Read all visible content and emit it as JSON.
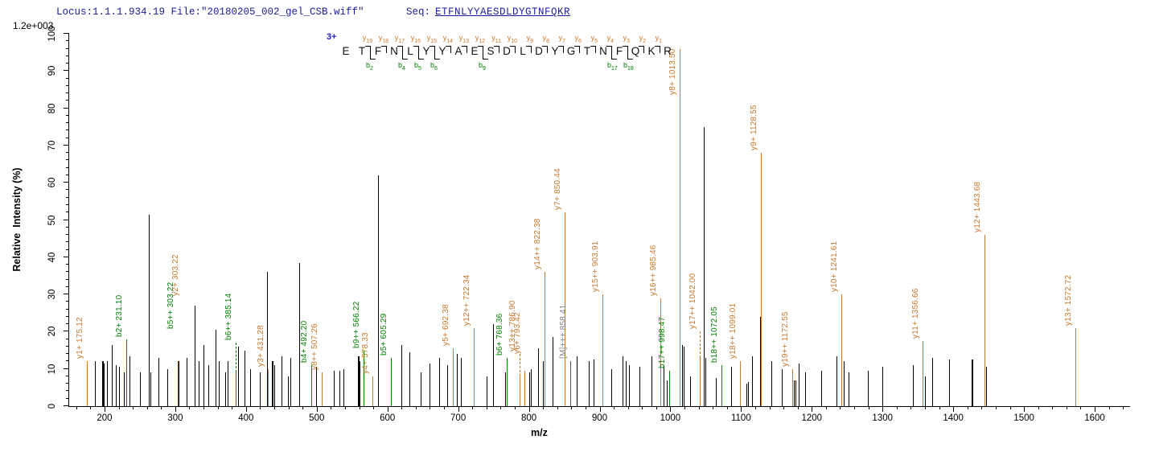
{
  "header": {
    "locus_file": "Locus:1.1.1.934.19 File:\"20180205_002_gel_CSB.wiff\"",
    "seq_label": "Seq:",
    "seq_value": "ETFNLYYAESDLDYGTNFQKR"
  },
  "colors": {
    "header_text": "#1c1c9e",
    "charge_text": "#2424cc",
    "y_ion": "#c8782d",
    "b_ion": "#008000",
    "unassigned_peak": "#000000",
    "precursor_label": "#808080",
    "precursor_line": "#555555"
  },
  "chart_data": {
    "type": "bar",
    "title": "",
    "xlabel": "m/z",
    "ylabel": "Relative  Intensity (%)",
    "y_axis_scale_label": "1.2e+003",
    "xlim": [
      150,
      1650
    ],
    "ylim": [
      0,
      100
    ],
    "x_major_ticks": [
      200,
      300,
      400,
      500,
      600,
      700,
      800,
      900,
      1000,
      1100,
      1200,
      1300,
      1400,
      1500,
      1600
    ],
    "x_minor_start": 160,
    "x_minor_end": 1640,
    "x_minor_step": 20,
    "y_major_step": 10,
    "y_minor_step": 2,
    "grid": false,
    "legend": false,
    "precursor_charge": "3+",
    "peptide": {
      "residues": "ETFNLYYAESDLDYGTNFQKR",
      "y_ions": [
        1,
        2,
        3,
        4,
        5,
        6,
        7,
        8,
        9,
        10,
        11,
        12,
        13,
        14,
        15,
        16,
        17,
        18,
        19
      ],
      "b_ions": [
        2,
        4,
        5,
        6,
        9,
        17,
        18
      ]
    },
    "peaks": [
      {
        "mz": 175.12,
        "i": 12,
        "t": "y",
        "label": "y1+ 175.12"
      },
      {
        "mz": 186,
        "i": 12,
        "t": "x"
      },
      {
        "mz": 197,
        "i": 12,
        "t": "x",
        "w": 2
      },
      {
        "mz": 199,
        "i": 11.5,
        "t": "x"
      },
      {
        "mz": 203,
        "i": 12,
        "t": "x"
      },
      {
        "mz": 210,
        "i": 16.5,
        "t": "x"
      },
      {
        "mz": 216,
        "i": 11,
        "t": "x"
      },
      {
        "mz": 221,
        "i": 10.5,
        "t": "x"
      },
      {
        "mz": 227,
        "i": 9,
        "t": "x"
      },
      {
        "mz": 231.1,
        "i": 18,
        "t": "b",
        "label": "b2+ 231.10"
      },
      {
        "mz": 235,
        "i": 13.5,
        "t": "x"
      },
      {
        "mz": 250,
        "i": 9,
        "t": "x"
      },
      {
        "mz": 263,
        "i": 51.5,
        "t": "x"
      },
      {
        "mz": 265,
        "i": 9,
        "t": "x"
      },
      {
        "mz": 276,
        "i": 13,
        "t": "x"
      },
      {
        "mz": 289,
        "i": 10,
        "t": "x"
      },
      {
        "mz": 303.22,
        "i": 12,
        "t": "b",
        "label": "b5++ 303.22",
        "dy": 8
      },
      {
        "mz": 303.22,
        "i": 12,
        "t": "y",
        "label": "y2+ 303.22",
        "dy": 17,
        "dx": 6,
        "nobar": true
      },
      {
        "mz": 305,
        "i": 12,
        "t": "x"
      },
      {
        "mz": 316,
        "i": 13,
        "t": "x"
      },
      {
        "mz": 327,
        "i": 27,
        "t": "x"
      },
      {
        "mz": 333,
        "i": 12,
        "t": "x"
      },
      {
        "mz": 340,
        "i": 16.5,
        "t": "x"
      },
      {
        "mz": 347,
        "i": 11,
        "t": "x"
      },
      {
        "mz": 357,
        "i": 20.5,
        "t": "x"
      },
      {
        "mz": 362,
        "i": 12,
        "t": "x"
      },
      {
        "mz": 371,
        "i": 9,
        "t": "x"
      },
      {
        "mz": 374,
        "i": 12,
        "t": "x"
      },
      {
        "mz": 385.14,
        "i": 9,
        "t": "b",
        "label": "b6++ 385.14",
        "leader": 8
      },
      {
        "mz": 389,
        "i": 16,
        "t": "x"
      },
      {
        "mz": 398,
        "i": 15,
        "t": "x"
      },
      {
        "mz": 406,
        "i": 10,
        "t": "x"
      },
      {
        "mz": 419,
        "i": 9,
        "t": "x"
      },
      {
        "mz": 430,
        "i": 36,
        "t": "x"
      },
      {
        "mz": 431.28,
        "i": 10,
        "t": "y",
        "label": "y3+ 431.28"
      },
      {
        "mz": 437,
        "i": 12,
        "t": "x",
        "w": 2
      },
      {
        "mz": 440,
        "i": 11,
        "t": "x"
      },
      {
        "mz": 450,
        "i": 13.5,
        "t": "x"
      },
      {
        "mz": 459,
        "i": 8,
        "t": "x"
      },
      {
        "mz": 463,
        "i": 13,
        "t": "x"
      },
      {
        "mz": 475,
        "i": 38.5,
        "t": "x"
      },
      {
        "mz": 492.2,
        "i": 11,
        "t": "b",
        "label": "b4+ 492.20"
      },
      {
        "mz": 499,
        "i": 10.5,
        "t": "x"
      },
      {
        "mz": 507.26,
        "i": 9,
        "t": "y",
        "label": "y8++ 507.26"
      },
      {
        "mz": 524,
        "i": 9.5,
        "t": "x"
      },
      {
        "mz": 532,
        "i": 9.5,
        "t": "x"
      },
      {
        "mz": 538,
        "i": 10,
        "t": "x"
      },
      {
        "mz": 558,
        "i": 13.5,
        "t": "x",
        "w": 2
      },
      {
        "mz": 561,
        "i": 12,
        "t": "x"
      },
      {
        "mz": 566.22,
        "i": 15,
        "t": "b",
        "label": "b9++ 566.22"
      },
      {
        "mz": 578.33,
        "i": 8,
        "t": "y",
        "label": "y4+ 578.33"
      },
      {
        "mz": 587,
        "i": 62,
        "t": "x"
      },
      {
        "mz": 605.29,
        "i": 13,
        "t": "b",
        "label": "b5+ 605.29"
      },
      {
        "mz": 620,
        "i": 16.5,
        "t": "x"
      },
      {
        "mz": 631,
        "i": 14.5,
        "t": "x"
      },
      {
        "mz": 647,
        "i": 9,
        "t": "x"
      },
      {
        "mz": 659,
        "i": 11.5,
        "t": "x"
      },
      {
        "mz": 673,
        "i": 13,
        "t": "x"
      },
      {
        "mz": 684,
        "i": 11,
        "t": "x"
      },
      {
        "mz": 692.38,
        "i": 15.5,
        "t": "y",
        "label": "y5+ 692.38"
      },
      {
        "mz": 698,
        "i": 14,
        "t": "x"
      },
      {
        "mz": 704,
        "i": 13,
        "t": "x"
      },
      {
        "mz": 722.34,
        "i": 21,
        "t": "y",
        "label": "y12++ 722.34"
      },
      {
        "mz": 740,
        "i": 8,
        "t": "x"
      },
      {
        "mz": 749,
        "i": 22,
        "t": "x"
      },
      {
        "mz": 766,
        "i": 9,
        "t": "x"
      },
      {
        "mz": 768.36,
        "i": 13,
        "t": "b",
        "label": "b6+ 768.36"
      },
      {
        "mz": 786.9,
        "i": 8,
        "t": "y",
        "label": "y13++ 786.90",
        "leader": 6
      },
      {
        "mz": 793.42,
        "i": 9.5,
        "t": "y",
        "label": "y6+ 793.42",
        "dy": 4
      },
      {
        "mz": 800,
        "i": 9,
        "t": "x"
      },
      {
        "mz": 803,
        "i": 10,
        "t": "x"
      },
      {
        "mz": 813,
        "i": 15.5,
        "t": "x"
      },
      {
        "mz": 820,
        "i": 12,
        "t": "x"
      },
      {
        "mz": 822.38,
        "i": 36,
        "t": "y",
        "label": "y14++ 822.38"
      },
      {
        "mz": 834,
        "i": 18.5,
        "t": "x"
      },
      {
        "mz": 850.44,
        "i": 52,
        "t": "y",
        "label": "y7+ 850.44"
      },
      {
        "mz": 858.41,
        "i": 12,
        "t": "M",
        "label": "[M]+++ 858.41"
      },
      {
        "mz": 868,
        "i": 13.5,
        "t": "x"
      },
      {
        "mz": 885,
        "i": 12,
        "t": "x"
      },
      {
        "mz": 891,
        "i": 12.5,
        "t": "x"
      },
      {
        "mz": 903.91,
        "i": 30,
        "t": "y",
        "label": "y15++ 903.91"
      },
      {
        "mz": 917,
        "i": 10,
        "t": "x"
      },
      {
        "mz": 932,
        "i": 13.5,
        "t": "x"
      },
      {
        "mz": 937,
        "i": 12,
        "t": "x"
      },
      {
        "mz": 941,
        "i": 11,
        "t": "x"
      },
      {
        "mz": 956,
        "i": 10.5,
        "t": "x"
      },
      {
        "mz": 973,
        "i": 13.5,
        "t": "x"
      },
      {
        "mz": 985.46,
        "i": 29,
        "t": "y",
        "label": "y16++ 985.46"
      },
      {
        "mz": 990,
        "i": 11,
        "t": "x"
      },
      {
        "mz": 995,
        "i": 7,
        "t": "x"
      },
      {
        "mz": 998.47,
        "i": 9.5,
        "t": "b",
        "label": "b17++ 998.47"
      },
      {
        "mz": 1013.5,
        "i": 96,
        "t": "y",
        "label": "y8+ 1013.50",
        "anchor": 83
      },
      {
        "mz": 1017,
        "i": 16.5,
        "t": "x"
      },
      {
        "mz": 1019,
        "i": 16,
        "t": "x"
      },
      {
        "mz": 1028,
        "i": 8,
        "t": "x"
      },
      {
        "mz": 1042.0,
        "i": 13,
        "t": "y",
        "label": "y17++ 1042.00",
        "leader": 7
      },
      {
        "mz": 1047,
        "i": 75,
        "t": "x"
      },
      {
        "mz": 1050,
        "i": 13,
        "t": "x"
      },
      {
        "mz": 1064,
        "i": 7.5,
        "t": "x"
      },
      {
        "mz": 1072.05,
        "i": 11,
        "t": "b",
        "label": "b18++ 1072.05"
      },
      {
        "mz": 1086,
        "i": 10.5,
        "t": "x"
      },
      {
        "mz": 1099.01,
        "i": 12,
        "t": "y",
        "label": "y18++ 1099.01"
      },
      {
        "mz": 1107,
        "i": 6,
        "t": "x"
      },
      {
        "mz": 1110,
        "i": 6.5,
        "t": "x"
      },
      {
        "mz": 1116,
        "i": 13.5,
        "t": "x"
      },
      {
        "mz": 1127,
        "i": 24,
        "t": "x"
      },
      {
        "mz": 1128.55,
        "i": 68,
        "t": "y",
        "label": "y9+ 1128.55"
      },
      {
        "mz": 1143,
        "i": 12,
        "t": "x"
      },
      {
        "mz": 1158,
        "i": 10,
        "t": "x"
      },
      {
        "mz": 1172.55,
        "i": 10,
        "t": "y",
        "label": "y19++ 1172.55"
      },
      {
        "mz": 1175,
        "i": 7,
        "t": "x"
      },
      {
        "mz": 1177,
        "i": 7,
        "t": "x"
      },
      {
        "mz": 1181,
        "i": 11.5,
        "t": "x"
      },
      {
        "mz": 1190,
        "i": 9,
        "t": "x"
      },
      {
        "mz": 1213,
        "i": 9.5,
        "t": "x"
      },
      {
        "mz": 1235,
        "i": 13.5,
        "t": "x"
      },
      {
        "mz": 1241.61,
        "i": 30,
        "t": "y",
        "label": "y10+ 1241.61"
      },
      {
        "mz": 1245,
        "i": 12,
        "t": "x"
      },
      {
        "mz": 1252,
        "i": 9,
        "t": "x"
      },
      {
        "mz": 1279,
        "i": 9.5,
        "t": "x"
      },
      {
        "mz": 1300,
        "i": 10.5,
        "t": "x"
      },
      {
        "mz": 1343,
        "i": 11,
        "t": "x"
      },
      {
        "mz": 1356.66,
        "i": 17.5,
        "t": "y",
        "label": "y11+ 1356.66"
      },
      {
        "mz": 1360,
        "i": 8,
        "t": "x"
      },
      {
        "mz": 1370,
        "i": 13,
        "t": "x"
      },
      {
        "mz": 1394,
        "i": 12.5,
        "t": "x"
      },
      {
        "mz": 1426,
        "i": 12.5,
        "t": "x",
        "w": 2
      },
      {
        "mz": 1443.68,
        "i": 46,
        "t": "y",
        "label": "y12+ 1443.68"
      },
      {
        "mz": 1446,
        "i": 10.5,
        "t": "x"
      },
      {
        "mz": 1572.72,
        "i": 21,
        "t": "y",
        "label": "y13+ 1572.72"
      }
    ]
  }
}
